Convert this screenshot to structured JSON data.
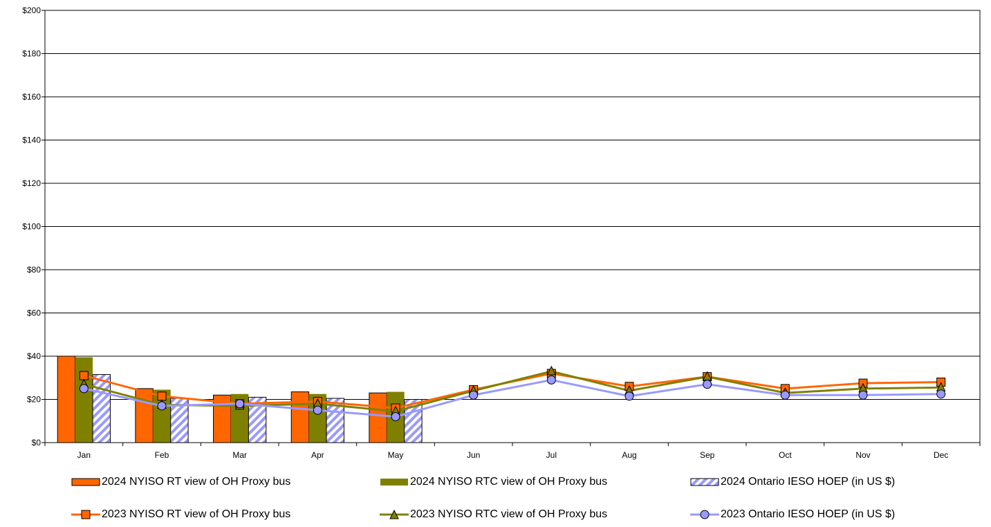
{
  "chart_data": {
    "type": "bar",
    "categories": [
      "Jan",
      "Feb",
      "Mar",
      "Apr",
      "May",
      "Jun",
      "Jul",
      "Aug",
      "Sep",
      "Oct",
      "Nov",
      "Dec"
    ],
    "ylim": [
      0,
      200
    ],
    "ytick_step": 20,
    "ytick_labels": [
      "$0",
      "$20",
      "$40",
      "$60",
      "$80",
      "$100",
      "$120",
      "$140",
      "$160",
      "$180",
      "$200"
    ],
    "grid": true,
    "legend_position": "bottom",
    "bar_series": [
      {
        "name": "2024 NYISO RT view of OH Proxy bus",
        "color": "#ff6600",
        "pattern": "solid",
        "values": [
          40,
          25,
          22,
          23.5,
          23
        ]
      },
      {
        "name": "2024 NYISO RTC view of OH Proxy bus",
        "color": "#808000",
        "pattern": "solid",
        "values": [
          39.5,
          24.5,
          22.5,
          22.5,
          23.5
        ]
      },
      {
        "name": "2024 Ontario IESO HOEP (in US $)",
        "color": "#9999ff",
        "pattern": "hatched",
        "values": [
          31.5,
          20.5,
          21,
          20.5,
          20
        ]
      }
    ],
    "line_series": [
      {
        "name": "2023 NYISO RT view of OH Proxy bus",
        "color": "#ff6600",
        "marker": "square",
        "values": [
          31,
          21.5,
          18,
          19,
          16,
          24.5,
          32,
          26,
          30.5,
          25,
          27.5,
          28
        ]
      },
      {
        "name": "2023 NYISO RTC view of OH Proxy bus",
        "color": "#808000",
        "marker": "triangle",
        "values": [
          27,
          17.5,
          17,
          18,
          14.5,
          24,
          33,
          24,
          30.5,
          23,
          25,
          25.5
        ]
      },
      {
        "name": "2023 Ontario IESO HOEP (in US $)",
        "color": "#9999ff",
        "marker": "circle",
        "values": [
          25,
          17,
          18,
          15,
          12,
          22,
          29,
          21.5,
          27,
          22,
          22,
          22.5
        ]
      }
    ]
  }
}
